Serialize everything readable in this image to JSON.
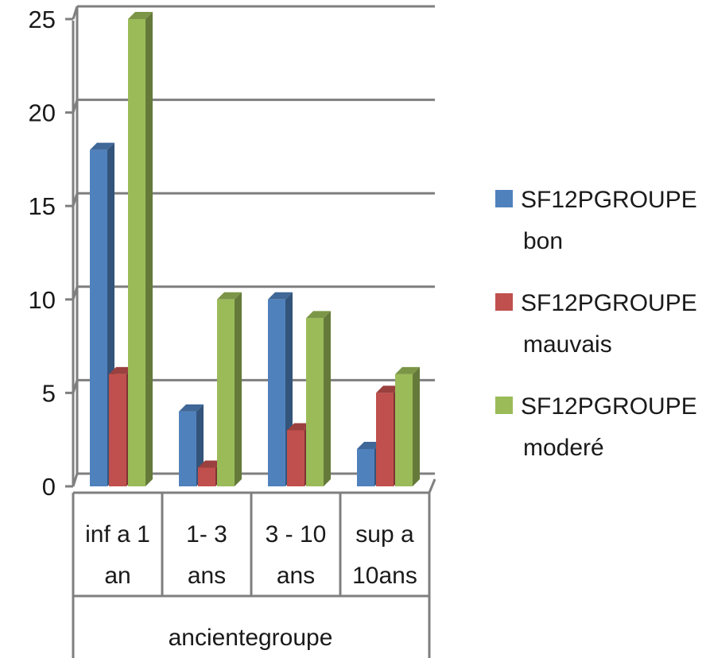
{
  "chart_data": {
    "type": "bar",
    "categories": [
      [
        "inf a 1",
        "an"
      ],
      [
        "1- 3",
        "ans"
      ],
      [
        "3 - 10",
        "ans"
      ],
      [
        "sup a",
        "10ans"
      ]
    ],
    "group_label": "ancientegroupe",
    "series": [
      {
        "name": [
          "SF12PGROUPE",
          "bon"
        ],
        "color": "#4f81bd",
        "values": [
          18,
          4,
          10,
          2
        ]
      },
      {
        "name": [
          "SF12PGROUPE",
          "mauvais"
        ],
        "color": "#c0504d",
        "values": [
          6,
          1,
          3,
          5
        ]
      },
      {
        "name": [
          "SF12PGROUPE",
          "moderé"
        ],
        "color": "#9bbb59",
        "values": [
          25,
          10,
          9,
          6
        ]
      }
    ],
    "ylim": [
      0,
      25
    ],
    "yticks": [
      0,
      5,
      10,
      15,
      20,
      25
    ],
    "grid": true,
    "legend_position": "right",
    "style": "3d-clustered-column"
  }
}
